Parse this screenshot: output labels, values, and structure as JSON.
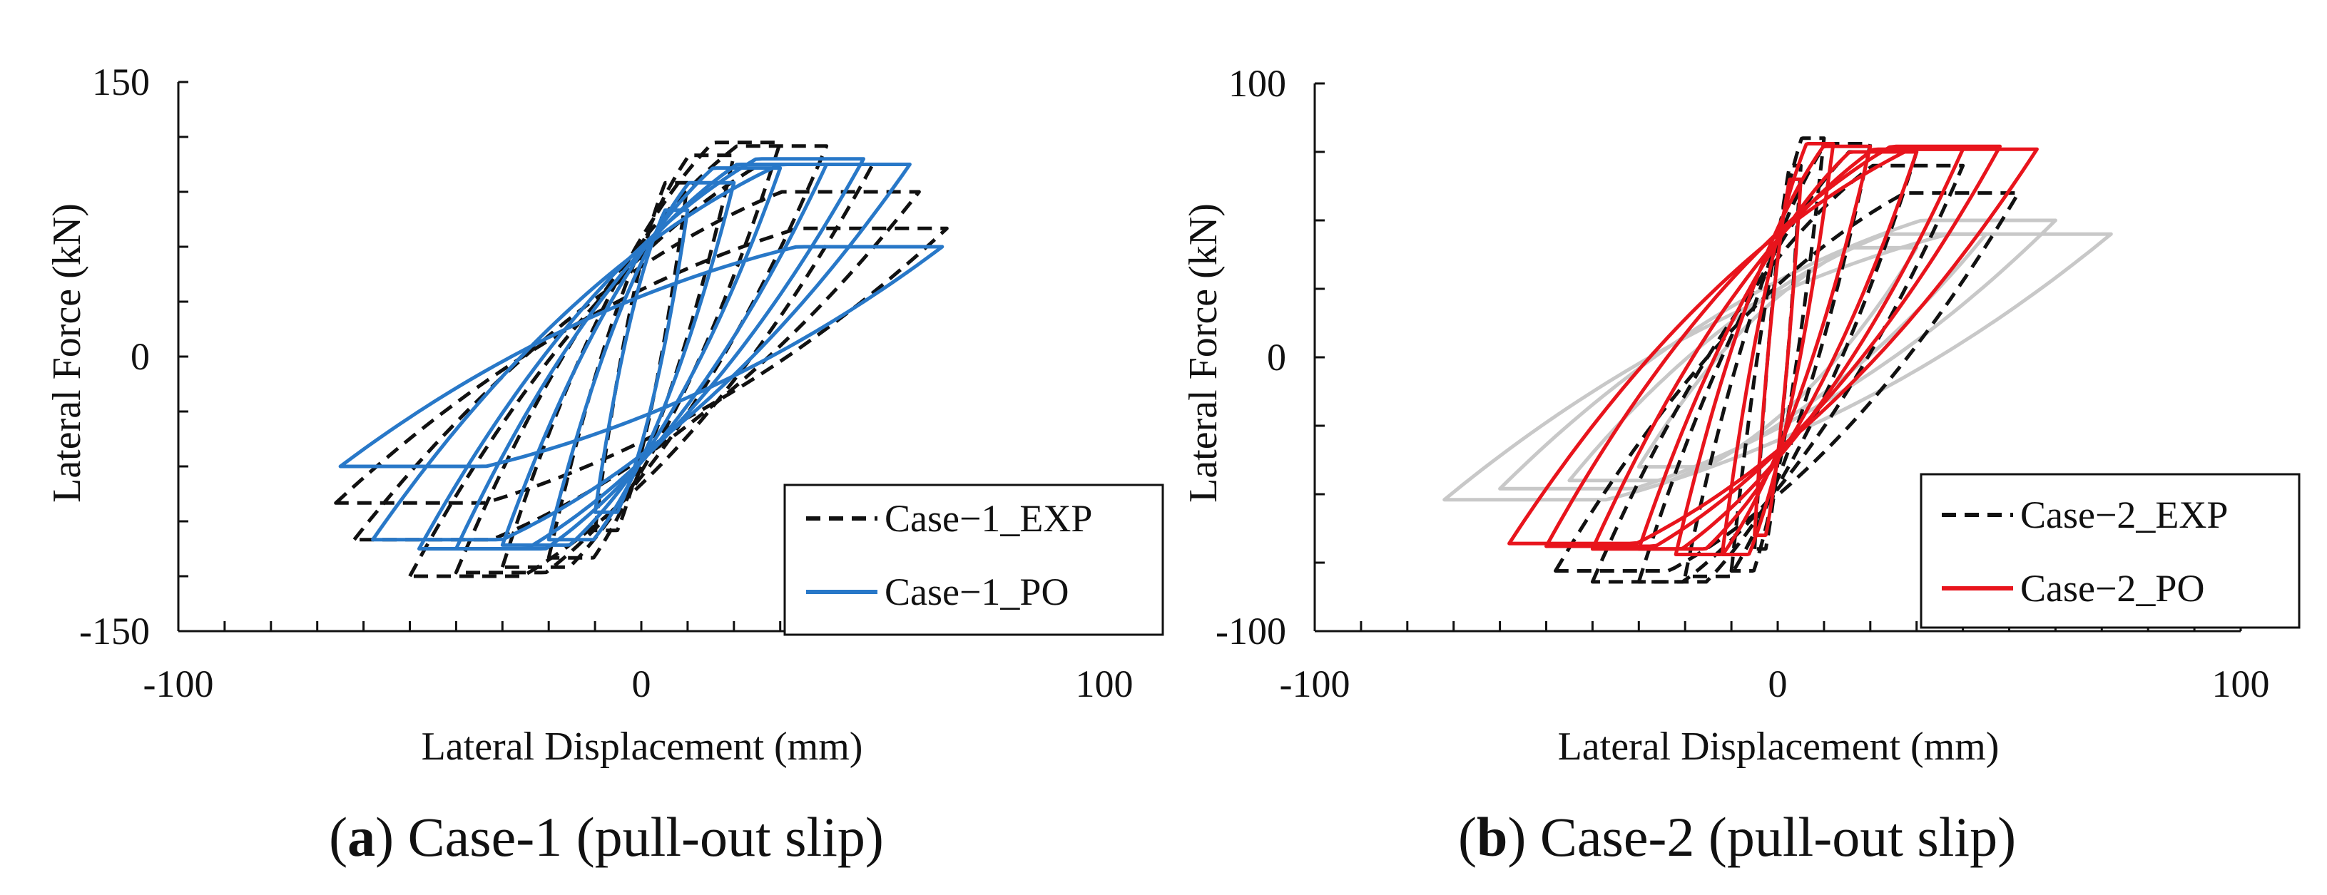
{
  "chart_data": [
    {
      "type": "line",
      "panel_label": "a",
      "caption": "Case-1 (pull-out slip)",
      "xlabel": "Lateral Displacement (mm)",
      "ylabel": "Lateral Force (kN)",
      "xlim": [
        -100,
        100
      ],
      "ylim": [
        -150,
        150
      ],
      "x_tick_labels": [
        "-100",
        "0",
        "100"
      ],
      "y_tick_labels": [
        "150",
        "0",
        "-150"
      ],
      "x_minor_step": 10,
      "y_minor_step": 30,
      "legend_position": "bottom-right",
      "series": [
        {
          "name": "Case−1_EXP",
          "color": "#111111",
          "style": "dashed",
          "loops": [
            {
              "dmax": 10,
              "dmin": -10,
              "fmax": 95,
              "fmin": -95
            },
            {
              "dmax": 20,
              "dmin": -20,
              "fmax": 110,
              "fmin": -110
            },
            {
              "dmax": 30,
              "dmin": -30,
              "fmax": 117,
              "fmin": -115
            },
            {
              "dmax": 40,
              "dmin": -40,
              "fmax": 115,
              "fmin": -118
            },
            {
              "dmax": 50,
              "dmin": -50,
              "fmax": 105,
              "fmin": -120
            },
            {
              "dmax": 60,
              "dmin": -62,
              "fmax": 90,
              "fmin": -100
            },
            {
              "dmax": 66,
              "dmin": -66,
              "fmax": 70,
              "fmin": -80
            }
          ]
        },
        {
          "name": "Case−1_PO",
          "color": "#2878c8",
          "style": "solid",
          "loops": [
            {
              "dmax": 10,
              "dmin": -10,
              "fmax": 80,
              "fmin": -85
            },
            {
              "dmax": 20,
              "dmin": -20,
              "fmax": 95,
              "fmin": -100
            },
            {
              "dmax": 30,
              "dmin": -30,
              "fmax": 103,
              "fmin": -103
            },
            {
              "dmax": 40,
              "dmin": -40,
              "fmax": 105,
              "fmin": -105
            },
            {
              "dmax": 48,
              "dmin": -48,
              "fmax": 108,
              "fmin": -105
            },
            {
              "dmax": 58,
              "dmin": -58,
              "fmax": 105,
              "fmin": -100
            },
            {
              "dmax": 65,
              "dmin": -65,
              "fmax": 60,
              "fmin": -60
            }
          ]
        }
      ]
    },
    {
      "type": "line",
      "panel_label": "b",
      "caption": "Case-2 (pull-out slip)",
      "xlabel": "Lateral Displacement (mm)",
      "ylabel": "Lateral Force (kN)",
      "xlim": [
        -100,
        100
      ],
      "ylim": [
        -100,
        100
      ],
      "x_tick_labels": [
        "-100",
        "0",
        "100"
      ],
      "y_tick_labels": [
        "100",
        "0",
        "-100"
      ],
      "x_minor_step": 10,
      "y_minor_step": 25,
      "legend_position": "bottom-right",
      "series": [
        {
          "name": "Case−1_PO",
          "in_legend": false,
          "color": "#c8c8c8",
          "style": "solid",
          "loops": [
            {
              "dmax": 30,
              "dmin": -30,
              "fmax": 40,
              "fmin": -40
            },
            {
              "dmax": 45,
              "dmin": -45,
              "fmax": 45,
              "fmin": -45
            },
            {
              "dmax": 60,
              "dmin": -60,
              "fmax": 50,
              "fmin": -48
            },
            {
              "dmax": 72,
              "dmin": -72,
              "fmax": 45,
              "fmin": -52
            }
          ]
        },
        {
          "name": "Case−2_EXP",
          "color": "#111111",
          "style": "dashed",
          "loops": [
            {
              "dmax": 5,
              "dmin": -5,
              "fmax": 70,
              "fmin": -70
            },
            {
              "dmax": 10,
              "dmin": -10,
              "fmax": 80,
              "fmin": -78
            },
            {
              "dmax": 20,
              "dmin": -20,
              "fmax": 78,
              "fmin": -80
            },
            {
              "dmax": 30,
              "dmin": -30,
              "fmax": 75,
              "fmin": -82
            },
            {
              "dmax": 40,
              "dmin": -40,
              "fmax": 70,
              "fmin": -82
            },
            {
              "dmax": 52,
              "dmin": -48,
              "fmax": 60,
              "fmin": -78
            }
          ]
        },
        {
          "name": "Case−2_PO",
          "color": "#e8141c",
          "style": "solid",
          "loops": [
            {
              "dmax": 5,
              "dmin": -5,
              "fmax": 65,
              "fmin": -65
            },
            {
              "dmax": 12,
              "dmin": -12,
              "fmax": 78,
              "fmin": -72
            },
            {
              "dmax": 20,
              "dmin": -22,
              "fmax": 77,
              "fmin": -72
            },
            {
              "dmax": 30,
              "dmin": -30,
              "fmax": 75,
              "fmin": -70
            },
            {
              "dmax": 40,
              "dmin": -40,
              "fmax": 76,
              "fmin": -70
            },
            {
              "dmax": 48,
              "dmin": -50,
              "fmax": 77,
              "fmin": -69
            },
            {
              "dmax": 56,
              "dmin": -58,
              "fmax": 76,
              "fmin": -68
            }
          ]
        }
      ]
    }
  ]
}
